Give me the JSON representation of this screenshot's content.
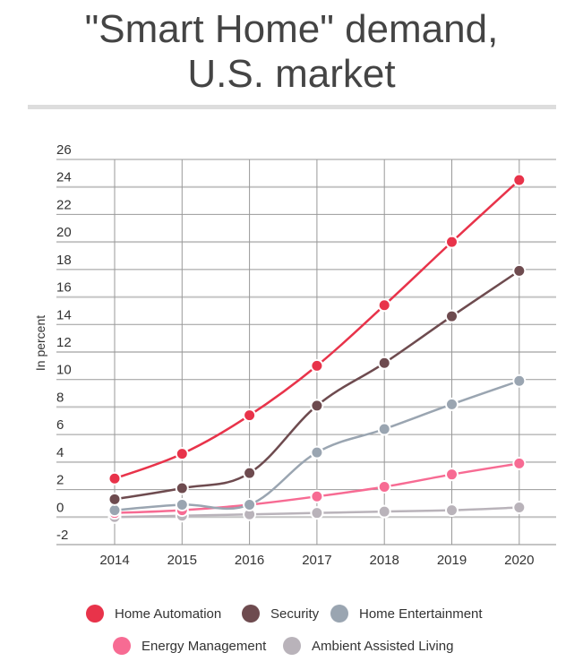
{
  "chart_data": {
    "type": "line",
    "title": "\"Smart Home\" demand, U.S. market",
    "ylabel": "In percent",
    "xlabel": "",
    "ylim": [
      -2,
      26
    ],
    "yticks": [
      -2,
      0,
      2,
      4,
      6,
      8,
      10,
      12,
      14,
      16,
      18,
      20,
      22,
      24,
      26
    ],
    "grid": true,
    "legend": "bottom",
    "categories": [
      "2014",
      "2015",
      "2016",
      "2017",
      "2018",
      "2019",
      "2020"
    ],
    "series": [
      {
        "name": "Home Automation",
        "color": "#e8334a",
        "values": [
          2.8,
          4.6,
          7.4,
          11.0,
          15.4,
          20.0,
          24.5
        ]
      },
      {
        "name": "Security",
        "color": "#6e4b4f",
        "values": [
          1.3,
          2.1,
          3.2,
          8.1,
          11.2,
          14.6,
          17.9
        ]
      },
      {
        "name": "Home Entertainment",
        "color": "#9aa5b1",
        "values": [
          0.5,
          0.9,
          0.9,
          4.7,
          6.4,
          8.2,
          9.9
        ]
      },
      {
        "name": "Energy Management",
        "color": "#f76b93",
        "values": [
          0.3,
          0.5,
          0.9,
          1.5,
          2.2,
          3.1,
          3.9
        ]
      },
      {
        "name": "Ambient Assisted Living",
        "color": "#b9b3ba",
        "values": [
          0.0,
          0.1,
          0.2,
          0.3,
          0.4,
          0.5,
          0.7
        ]
      }
    ]
  },
  "title_lines": [
    "\"Smart Home\" demand,",
    "U.S. market"
  ]
}
